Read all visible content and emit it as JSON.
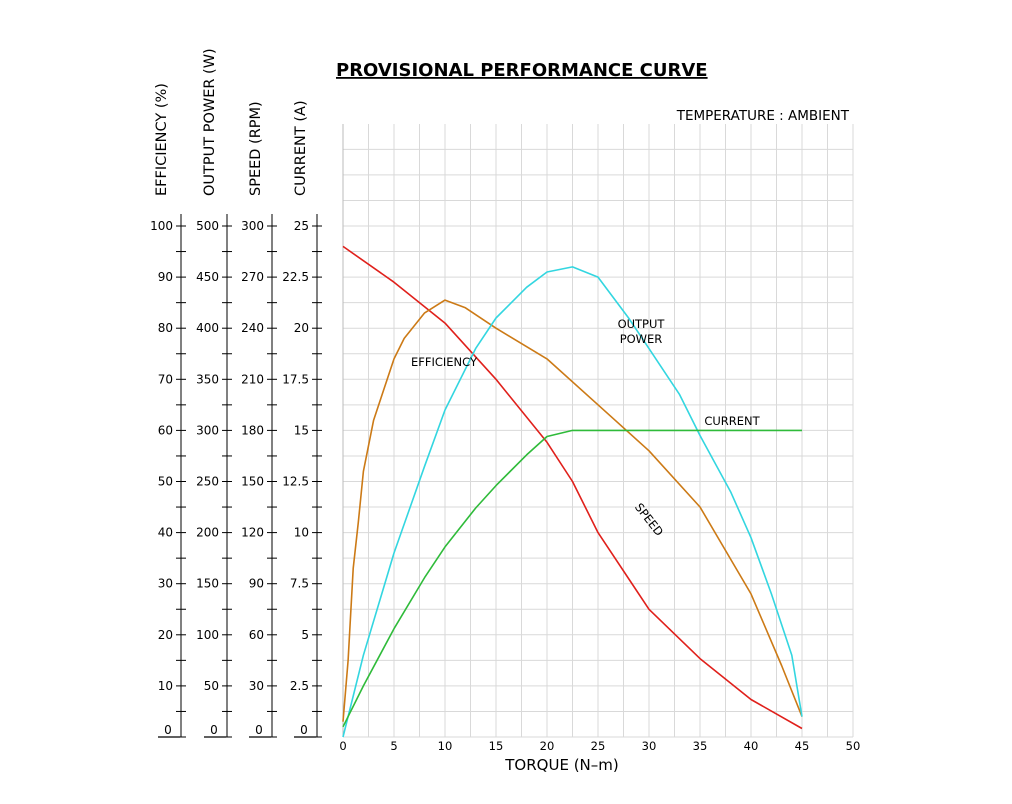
{
  "chart_data": {
    "type": "line",
    "title": "PROVISIONAL PERFORMANCE CURVE",
    "annotation": "TEMPERATURE : AMBIENT",
    "xlabel": "TORQUE (N–m)",
    "xlim": [
      0,
      50
    ],
    "x_ticks": [
      "0",
      "5",
      "10",
      "15",
      "20",
      "25",
      "30",
      "35",
      "40",
      "45",
      "50"
    ],
    "grid": true,
    "y_axes": [
      {
        "label": "EFFICIENCY (%)",
        "ylim": [
          0,
          100
        ],
        "ticks": [
          "100",
          "90",
          "80",
          "70",
          "60",
          "50",
          "40",
          "30",
          "20",
          "10",
          "0"
        ]
      },
      {
        "label": "OUTPUT POWER (W)",
        "ylim": [
          0,
          500
        ],
        "ticks": [
          "500",
          "450",
          "400",
          "350",
          "300",
          "250",
          "200",
          "150",
          "100",
          "50",
          "0"
        ]
      },
      {
        "label": "SPEED (RPM)",
        "ylim": [
          0,
          300
        ],
        "ticks": [
          "300",
          "270",
          "240",
          "210",
          "180",
          "150",
          "120",
          "90",
          "60",
          "30",
          "0"
        ]
      },
      {
        "label": "CURRENT (A)",
        "ylim": [
          0,
          25
        ],
        "ticks": [
          "25",
          "22.5",
          "20",
          "17.5",
          "15",
          "12.5",
          "10",
          "7.5",
          "5",
          "2.5",
          "0"
        ]
      }
    ],
    "series": [
      {
        "name": "SPEED",
        "color": "#e0201b",
        "axis": "SPEED (RPM)",
        "x": [
          0,
          5,
          10,
          15,
          20,
          22.5,
          25,
          30,
          35,
          40,
          45
        ],
        "y": [
          288,
          267,
          243,
          210,
          173,
          150,
          120,
          75,
          46,
          22,
          5
        ]
      },
      {
        "name": "EFFICIENCY",
        "color": "#cc7a16",
        "axis": "EFFICIENCY (%)",
        "x": [
          0,
          0.5,
          1,
          1.5,
          2,
          3,
          4,
          5,
          6,
          8,
          10,
          12,
          15,
          20,
          25,
          30,
          35,
          40,
          43,
          45
        ],
        "y": [
          3,
          15,
          33,
          42,
          52,
          62,
          68,
          74,
          78,
          83,
          85.5,
          84,
          80,
          74,
          65,
          56,
          45,
          28,
          14,
          4
        ]
      },
      {
        "name": "OUTPUT POWER",
        "color": "#33d6e0",
        "axis": "OUTPUT POWER (W)",
        "x": [
          0,
          2,
          5,
          8,
          10,
          13,
          15,
          18,
          20,
          22.5,
          25,
          28,
          30,
          33,
          35,
          38,
          40,
          42,
          44,
          45
        ],
        "y": [
          0,
          80,
          180,
          265,
          320,
          380,
          410,
          440,
          455,
          460,
          450,
          410,
          380,
          335,
          295,
          240,
          195,
          140,
          80,
          20
        ]
      },
      {
        "name": "CURRENT",
        "color": "#2fbb3a",
        "axis": "CURRENT (A)",
        "x": [
          0,
          2,
          5,
          8,
          10,
          13,
          15,
          18,
          20,
          22.5,
          25,
          30,
          35,
          40,
          45
        ],
        "y": [
          0.5,
          2.5,
          5.3,
          7.8,
          9.3,
          11.2,
          12.3,
          13.8,
          14.7,
          15,
          15,
          15,
          15,
          15,
          15
        ]
      }
    ],
    "curve_labels": [
      "EFFICIENCY",
      "OUTPUT",
      "POWER",
      "CURRENT",
      "SPEED"
    ]
  }
}
